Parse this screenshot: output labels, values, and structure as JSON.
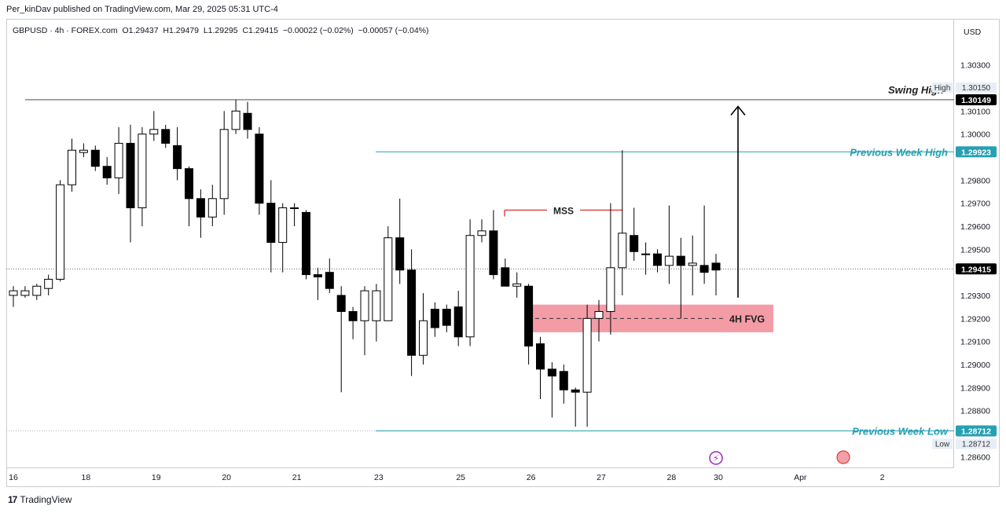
{
  "publish_line": "Per_kinDav published on TradingView.com, Mar 29, 2025 05:31 UTC-4",
  "legend": {
    "symbol": "GBPUSD · 4h · FOREX.com",
    "o": "O1.29437",
    "h": "H1.29479",
    "l": "L1.29295",
    "c": "C1.29415",
    "change": "−0.00022 (−0.02%)",
    "change2": "−0.00057 (−0.04%)"
  },
  "footer_brand": "TradingView",
  "footer_logo_text": "17",
  "colors": {
    "bull_fill": "#ffffff",
    "bear_fill": "#000000",
    "teal": "#26a0b3",
    "fvg": "#f28b96",
    "mss_line": "#e53935",
    "text": "#131722"
  },
  "chart_data": {
    "type": "candlestick",
    "timeframe": "4h",
    "symbol": "GBPUSD",
    "unit": "USD",
    "ylim": [
      1.2855,
      1.305
    ],
    "y_ticks": [
      1.286,
      1.287,
      1.288,
      1.289,
      1.29,
      1.291,
      1.292,
      1.293,
      1.294,
      1.295,
      1.296,
      1.297,
      1.298,
      1.299,
      1.3,
      1.301,
      1.302,
      1.303
    ],
    "y_tick_labels": [
      "1.28600",
      "",
      "1.28800",
      "1.28900",
      "1.29000",
      "1.29100",
      "1.29200",
      "1.29300",
      "",
      "1.29500",
      "1.29600",
      "1.29700",
      "1.29800",
      "",
      "1.30000",
      "1.30100",
      "",
      "1.30300"
    ],
    "x_labels": [
      "16",
      "18",
      "19",
      "20",
      "21",
      "23",
      "25",
      "26",
      "27",
      "28",
      "30",
      "Apr",
      "2"
    ],
    "x_label_slots": [
      0,
      6.2,
      12.2,
      18.2,
      24.2,
      31.2,
      38.2,
      44.2,
      50.2,
      56.2,
      60.2,
      67.2,
      74.2
    ],
    "candles": [
      [
        1.293,
        1.2932,
        1.2934,
        1.2925
      ],
      [
        1.293,
        1.2932,
        1.2934,
        1.2929
      ],
      [
        1.293,
        1.2934,
        1.2935,
        1.2928
      ],
      [
        1.2933,
        1.2937,
        1.2939,
        1.293
      ],
      [
        1.2937,
        1.2978,
        1.298,
        1.2936
      ],
      [
        1.2978,
        1.2993,
        1.2998,
        1.2975
      ],
      [
        1.2992,
        1.2993,
        1.2996,
        1.299
      ],
      [
        1.2993,
        1.2986,
        1.2995,
        1.2984
      ],
      [
        1.2986,
        1.2981,
        1.299,
        1.2978
      ],
      [
        1.2981,
        1.2996,
        1.3003,
        1.2974
      ],
      [
        1.2996,
        1.2968,
        1.3004,
        1.2953
      ],
      [
        1.2968,
        1.3,
        1.3003,
        1.296
      ],
      [
        1.3,
        1.3002,
        1.301,
        1.2997
      ],
      [
        1.3002,
        1.2996,
        1.3004,
        1.2994
      ],
      [
        1.2995,
        1.2985,
        1.3003,
        1.298
      ],
      [
        1.2985,
        1.2972,
        1.2986,
        1.296
      ],
      [
        1.2972,
        1.2964,
        1.2976,
        1.2955
      ],
      [
        1.2964,
        1.2972,
        1.2978,
        1.296
      ],
      [
        1.2972,
        1.3002,
        1.301,
        1.2965
      ],
      [
        1.3002,
        1.301,
        1.3015,
        1.3
      ],
      [
        1.3009,
        1.3002,
        1.3014,
        1.2998
      ],
      [
        1.3,
        1.297,
        1.3003,
        1.2965
      ],
      [
        1.297,
        1.2953,
        1.298,
        1.294
      ],
      [
        1.2953,
        1.2968,
        1.297,
        1.294
      ],
      [
        1.2968,
        1.2968,
        1.297,
        1.296
      ],
      [
        1.2966,
        1.2939,
        1.2967,
        1.2937
      ],
      [
        1.2939,
        1.2938,
        1.2942,
        1.2928
      ],
      [
        1.294,
        1.2933,
        1.2946,
        1.2931
      ],
      [
        1.293,
        1.2923,
        1.2934,
        1.2888
      ],
      [
        1.2923,
        1.2919,
        1.2925,
        1.2911
      ],
      [
        1.2919,
        1.2932,
        1.2934,
        1.2904
      ],
      [
        1.2919,
        1.2932,
        1.2935,
        1.291
      ],
      [
        1.2919,
        1.2955,
        1.296,
        1.2919
      ],
      [
        1.2955,
        1.2941,
        1.2972,
        1.2935
      ],
      [
        1.2941,
        1.2904,
        1.295,
        1.2895
      ],
      [
        1.2904,
        1.2919,
        1.2931,
        1.29
      ],
      [
        1.2924,
        1.2916,
        1.2927,
        1.2912
      ],
      [
        1.2924,
        1.2917,
        1.2926,
        1.2914
      ],
      [
        1.2925,
        1.2912,
        1.2932,
        1.2908
      ],
      [
        1.2912,
        1.2956,
        1.2963,
        1.2908
      ],
      [
        1.2956,
        1.2958,
        1.2963,
        1.2953
      ],
      [
        1.2958,
        1.2939,
        1.2967,
        1.2937
      ],
      [
        1.2942,
        1.2934,
        1.2946,
        1.2935
      ],
      [
        1.2934,
        1.2935,
        1.294,
        1.2929
      ],
      [
        1.2934,
        1.2908,
        1.2935,
        1.29
      ],
      [
        1.2909,
        1.2898,
        1.2912,
        1.2885
      ],
      [
        1.2898,
        1.2895,
        1.2901,
        1.2877
      ],
      [
        1.2897,
        1.2889,
        1.29,
        1.2883
      ],
      [
        1.2889,
        1.2888,
        1.289,
        1.2873
      ],
      [
        1.2888,
        1.292,
        1.2926,
        1.2873
      ],
      [
        1.292,
        1.2923,
        1.2928,
        1.291
      ],
      [
        1.2923,
        1.2942,
        1.297,
        1.2913
      ],
      [
        1.2942,
        1.2957,
        1.2993,
        1.293
      ],
      [
        1.2956,
        1.2949,
        1.2968,
        1.2945
      ],
      [
        1.2948,
        1.2948,
        1.2953,
        1.2939
      ],
      [
        1.2948,
        1.2943,
        1.295,
        1.294
      ],
      [
        1.2943,
        1.2947,
        1.2969,
        1.2935
      ],
      [
        1.2947,
        1.2943,
        1.2955,
        1.292
      ],
      [
        1.2943,
        1.2944,
        1.2956,
        1.293
      ],
      [
        1.2943,
        1.294,
        1.2969,
        1.2935
      ],
      [
        1.2944,
        1.2941,
        1.2948,
        1.293
      ]
    ],
    "levels": {
      "swing_high": {
        "label": "Swing High",
        "value": 1.30149,
        "price_label": "1.30149"
      },
      "high_marker": {
        "label": "High",
        "price_label": "1.30150"
      },
      "previous_week_high": {
        "label": "Previous Week High",
        "value": 1.29923,
        "price_label": "1.29923"
      },
      "previous_week_low": {
        "label": "Previous Week Low",
        "value": 1.28712,
        "price_label": "1.28712"
      },
      "low_marker": {
        "label": "Low",
        "price_label": "1.28712"
      },
      "current_price": {
        "value": 1.29415,
        "price_label": "1.29415"
      }
    },
    "fvg": {
      "label": "4H FVG",
      "top": 1.2926,
      "bottom": 1.2914,
      "mid": 1.292
    },
    "mss": {
      "label": "MSS",
      "price": 1.2967
    },
    "arrow": {
      "from": 1.2929,
      "to": 1.3012
    }
  }
}
